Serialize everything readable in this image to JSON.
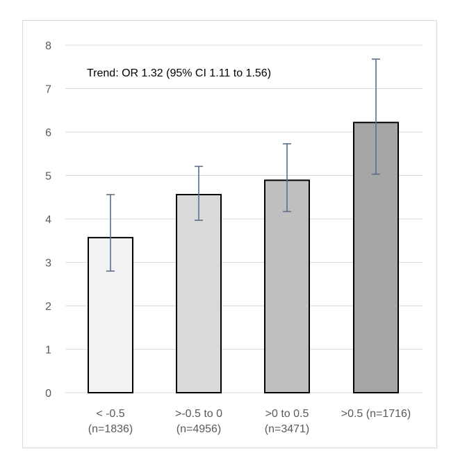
{
  "chart_data": {
    "type": "bar",
    "title": "",
    "xlabel": "",
    "ylabel": "",
    "ylim": [
      0,
      8
    ],
    "yticks": [
      0,
      1,
      2,
      3,
      4,
      5,
      6,
      7,
      8
    ],
    "grid": true,
    "categories": [
      [
        "< -0.5",
        "(n=1836)"
      ],
      [
        ">-0.5 to 0",
        "(n=4956)"
      ],
      [
        ">0 to 0.5",
        "(n=3471)"
      ],
      [
        ">0.5 (n=1716)"
      ]
    ],
    "values": [
      3.57,
      4.56,
      4.89,
      6.22
    ],
    "error_low": [
      2.8,
      3.97,
      4.17,
      5.03
    ],
    "error_high": [
      4.56,
      5.21,
      5.73,
      7.68
    ],
    "bar_colors": [
      "#f2f2f2",
      "#d9d9d9",
      "#bfbfbf",
      "#a6a6a6"
    ],
    "bar_edge_color": "#000000",
    "error_bar_color": "#5a6e8a",
    "gridline_color": "#d9d9d9",
    "annotation": "Trend: OR 1.32 (95% CI 1.11 to 1.56)"
  }
}
